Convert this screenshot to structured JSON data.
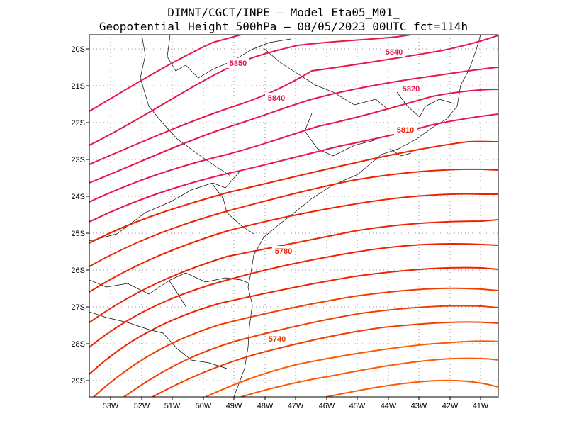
{
  "header": {
    "line1": "DIMNT/CGCT/INPE –  Model Eta05_M01_",
    "line2": "Geopotential Height 500hPa –  08/05/2023 00UTC fct=114h"
  },
  "map": {
    "lon_range": [
      -53.6,
      -40.6
    ],
    "lat_range": [
      -29.4,
      -19.8
    ],
    "x_ticks": [
      "53W",
      "52W",
      "51W",
      "50W",
      "49W",
      "48W",
      "47W",
      "46W",
      "45W",
      "44W",
      "43W",
      "42W",
      "41W"
    ],
    "y_ticks": [
      "20S",
      "21S",
      "22S",
      "23S",
      "24S",
      "25S",
      "26S",
      "27S",
      "28S",
      "29S"
    ],
    "contour_labels": [
      "5850",
      "5840",
      "5840",
      "5820",
      "5810",
      "5780",
      "5740"
    ],
    "colors": {
      "high": "#e8174a",
      "mid": "#ee2200",
      "low": "#ff5a00"
    }
  }
}
